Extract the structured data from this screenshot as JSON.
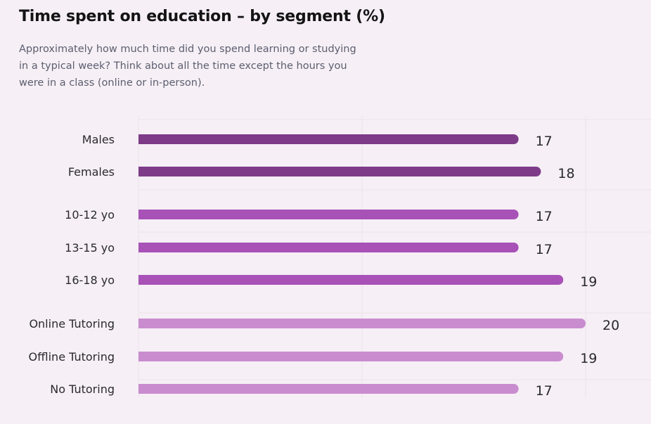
{
  "header": {
    "title": "Time spent on education – by segment (%)",
    "subtitle": "Approximately how much time did you spend learning or studying in a typical week? Think about all the time except the hours you were in a class (online or in-person)."
  },
  "colors": {
    "gender": "#7d3b88",
    "age": "#a852b7",
    "tutoring": "#c98ccf",
    "grid": "#ebe3eb",
    "background": "#f6eff6"
  },
  "chart_data": {
    "type": "bar",
    "orientation": "horizontal",
    "title": "Time spent on education – by segment (%)",
    "xlabel": "",
    "ylabel": "",
    "xlim": [
      0,
      20
    ],
    "grid": true,
    "categories": [
      "Males",
      "Females",
      "10-12 yo",
      "13-15 yo",
      "16-18 yo",
      "Online Tutoring",
      "Offline Tutoring",
      "No Tutoring"
    ],
    "values": [
      17,
      18,
      17,
      17,
      19,
      20,
      19,
      17
    ],
    "groups": [
      "gender",
      "gender",
      "age",
      "age",
      "age",
      "tutoring",
      "tutoring",
      "tutoring"
    ]
  }
}
